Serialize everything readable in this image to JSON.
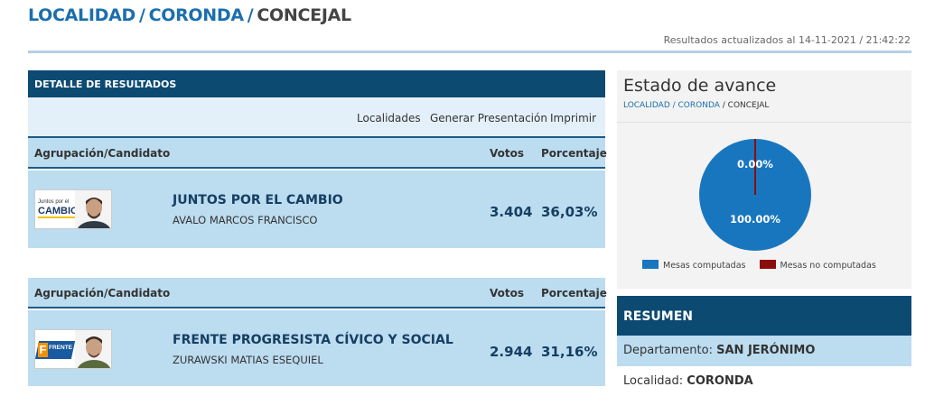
{
  "breadcrumb": {
    "level1": "LOCALIDAD",
    "level2": "CORONDA",
    "level3": "CONCEJAL"
  },
  "updated_text": "Resultados actualizados al 14-11-2021 / 21:42:22",
  "results_panel": {
    "header": "DETALLE DE RESULTADOS",
    "actions": [
      "Localidades",
      "Generar Presentación",
      "Imprimir"
    ],
    "columns": {
      "group": "Agrupación/Candidato",
      "votes": "Votos",
      "pct": "Porcentaje"
    },
    "rows": [
      {
        "party": "JUNTOS POR EL CAMBIO",
        "candidate": "AVALO MARCOS FRANCISCO",
        "votes": "3.404",
        "pct": "36,03%",
        "logo_text_1": "Juntos por el",
        "logo_text_2": "CAMBIO"
      },
      {
        "party": "FRENTE PROGRESISTA CÍVICO Y SOCIAL",
        "candidate": "ZURAWSKI MATIAS ESEQUIEL",
        "votes": "2.944",
        "pct": "31,16%",
        "logo_text_1": "FRENTE",
        "logo_text_2": "F"
      }
    ]
  },
  "status": {
    "title": "Estado de avance",
    "crumb": {
      "a": "LOCALIDAD",
      "b": "CORONDA",
      "c": "CONCEJAL"
    },
    "chart_data": {
      "type": "pie",
      "slices": [
        {
          "label": "Mesas computadas",
          "value": 100.0,
          "text": "100.00%",
          "color": "#1876bf"
        },
        {
          "label": "Mesas no computadas",
          "value": 0.0,
          "text": "0.00%",
          "color": "#8b0d0d"
        }
      ]
    }
  },
  "resumen": {
    "header": "RESUMEN",
    "departamento_label": "Departamento:",
    "departamento_value": "SAN JERÓNIMO",
    "localidad_label": "Localidad:",
    "localidad_value": "CORONDA"
  }
}
